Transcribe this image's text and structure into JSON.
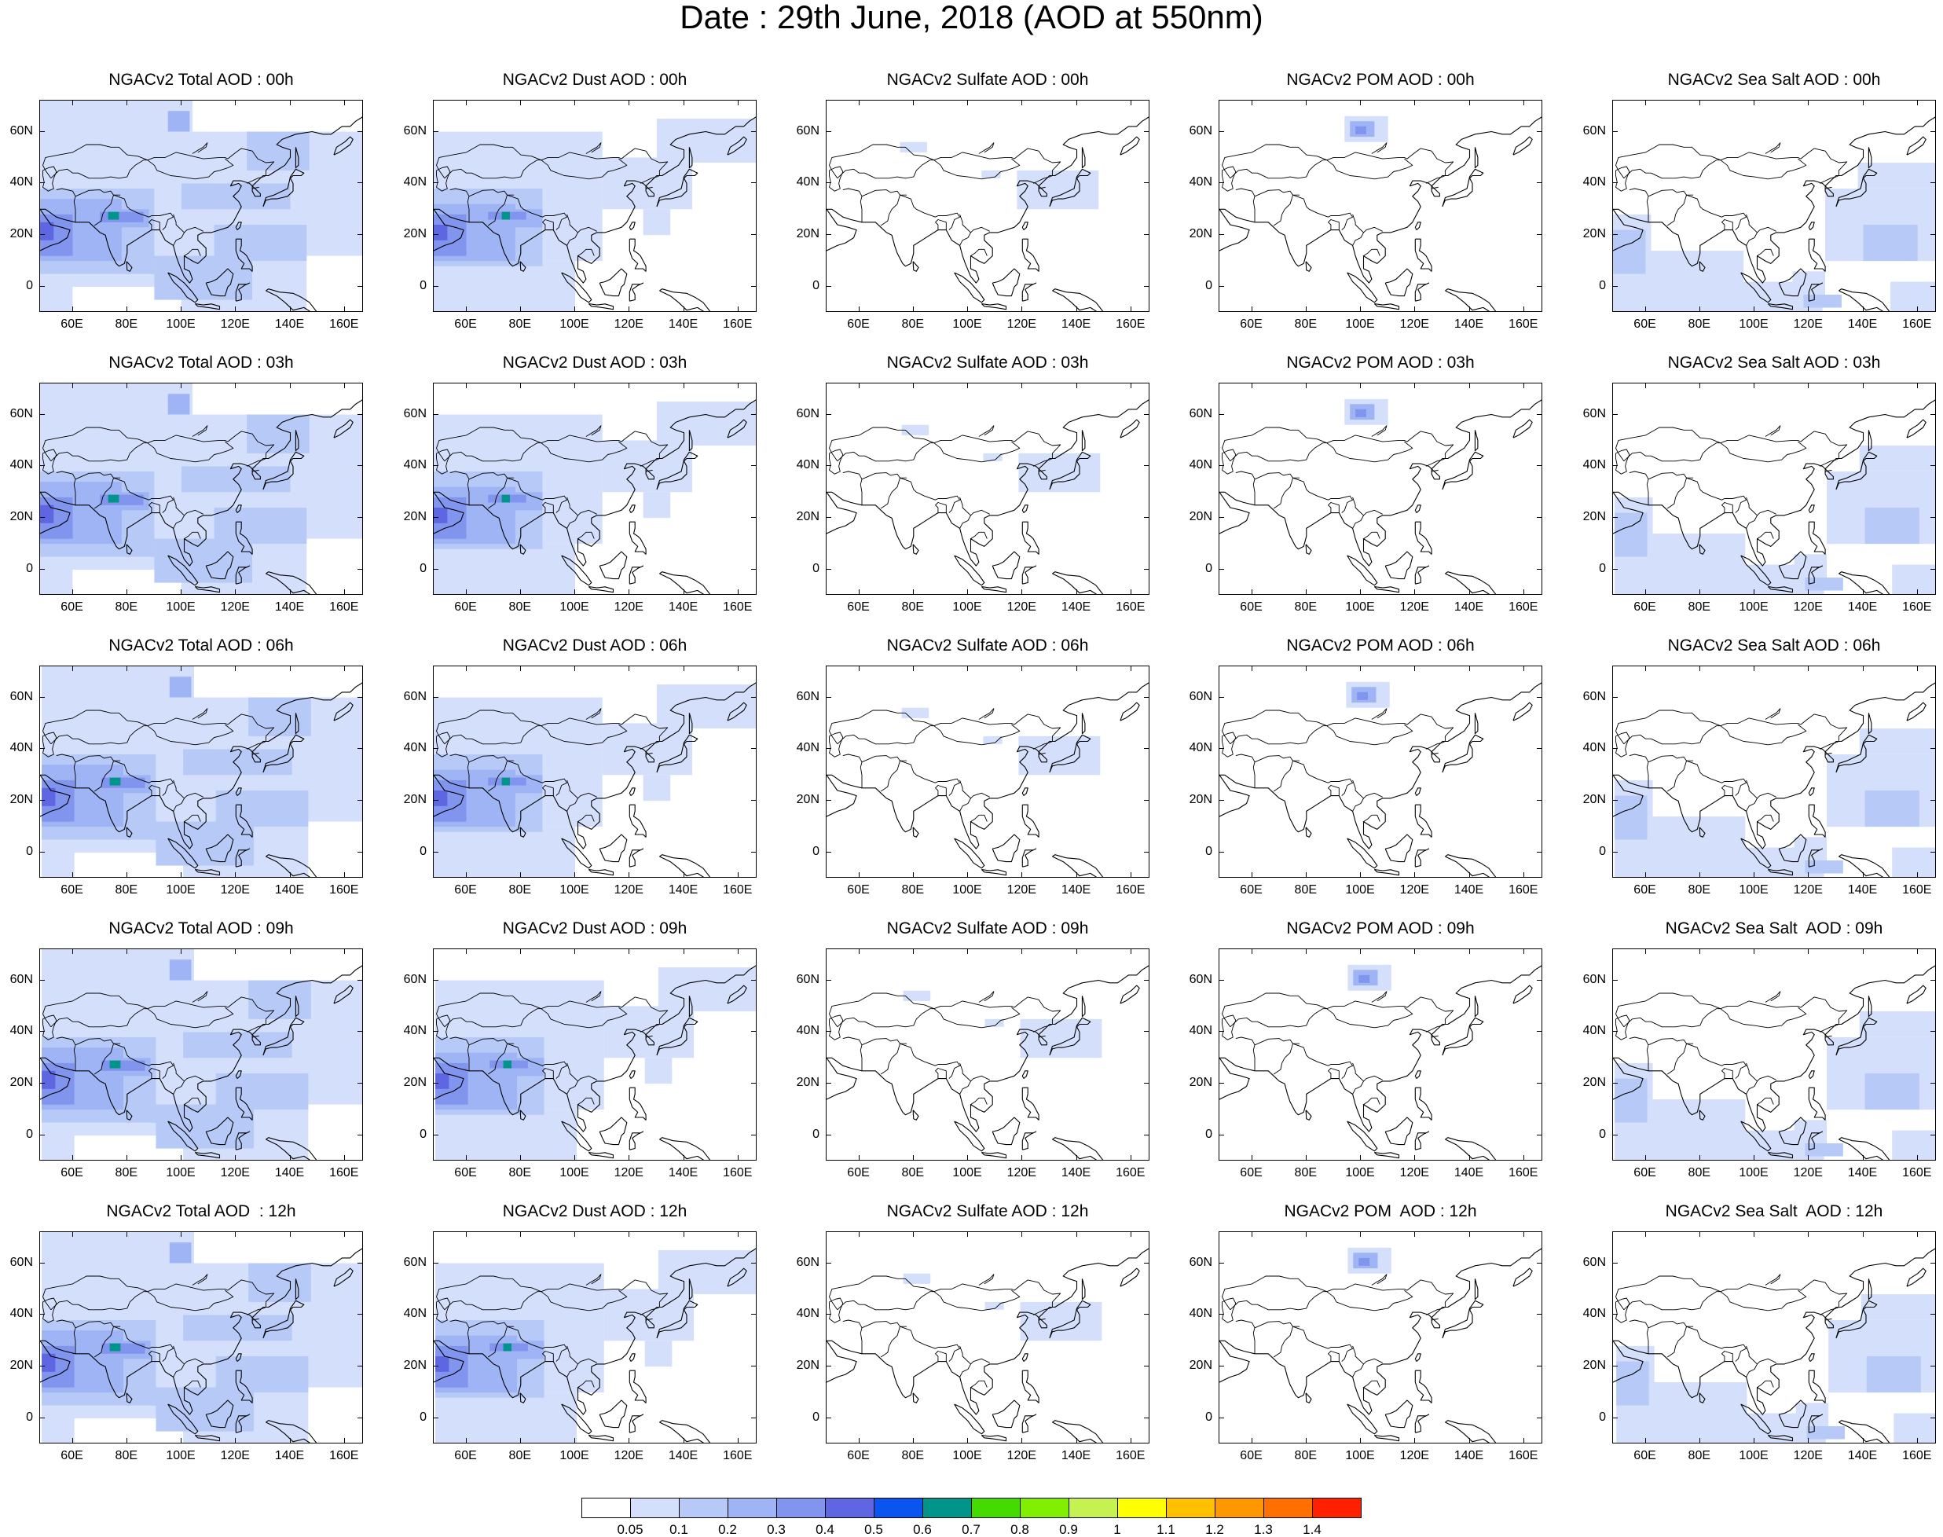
{
  "header": {
    "title": "Date : 29th June, 2018 (AOD at 550nm)"
  },
  "rows": [
    "00h",
    "03h",
    "06h",
    "09h",
    "12h"
  ],
  "columns": [
    "Total",
    "Dust",
    "Sulfate",
    "POM",
    "Sea Salt"
  ],
  "panel_titles": [
    [
      "NGACv2 Total AOD : 00h",
      "NGACv2 Dust AOD : 00h",
      "NGACv2 Sulfate AOD : 00h",
      "NGACv2 POM AOD : 00h",
      "NGACv2 Sea Salt AOD : 00h"
    ],
    [
      "NGACv2 Total AOD : 03h",
      "NGACv2 Dust AOD : 03h",
      "NGACv2 Sulfate AOD : 03h",
      "NGACv2 POM AOD : 03h",
      "NGACv2 Sea Salt AOD : 03h"
    ],
    [
      "NGACv2 Total AOD : 06h",
      "NGACv2 Dust AOD : 06h",
      "NGACv2 Sulfate AOD : 06h",
      "NGACv2 POM AOD : 06h",
      "NGACv2 Sea Salt AOD : 06h"
    ],
    [
      "NGACv2 Total AOD : 09h",
      "NGACv2 Dust AOD : 09h",
      "NGACv2 Sulfate AOD : 09h",
      "NGACv2 POM AOD : 09h",
      "NGACv2 Sea Salt  AOD : 09h"
    ],
    [
      "NGACv2 Total AOD  : 12h",
      "NGACv2 Dust AOD : 12h",
      "NGACv2 Sulfate AOD : 12h",
      "NGACv2 POM  AOD : 12h",
      "NGACv2 Sea Salt  AOD : 12h"
    ]
  ],
  "axes": {
    "lon_ticks": [
      "60E",
      "80E",
      "100E",
      "120E",
      "140E",
      "160E"
    ],
    "lon_values": [
      60,
      80,
      100,
      120,
      140,
      160
    ],
    "lat_ticks": [
      "60N",
      "40N",
      "20N",
      "0"
    ],
    "lat_values": [
      60,
      40,
      20,
      0
    ],
    "lon_range": [
      48,
      167
    ],
    "lat_range": [
      -10,
      72
    ]
  },
  "colorbar": {
    "colors": [
      "#ffffff",
      "#d4e0fb",
      "#b6c9f7",
      "#9fb4f4",
      "#8194ee",
      "#5f66e2",
      "#0a55f0",
      "#00948a",
      "#44dc00",
      "#80f000",
      "#c5f251",
      "#ffff00",
      "#ffc000",
      "#ff9800",
      "#ff7000",
      "#ff2000"
    ],
    "labels": [
      "0.05",
      "0.1",
      "0.2",
      "0.3",
      "0.4",
      "0.5",
      "0.6",
      "0.7",
      "0.8",
      "0.9",
      "1",
      "1.1",
      "1.2",
      "1.3",
      "1.4"
    ]
  },
  "map_style": {
    "coast_color": "#000000"
  }
}
